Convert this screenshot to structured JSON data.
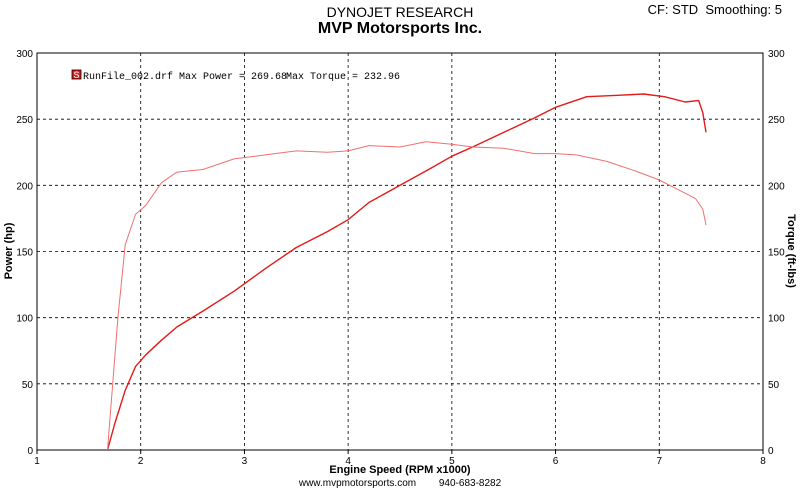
{
  "header": {
    "company": "DYNOJET RESEARCH",
    "shop": "MVP Motorsports Inc.",
    "cf": "CF: STD",
    "smoothing": "Smoothing: 5"
  },
  "footer": {
    "website": "www.mvpmotorsports.com",
    "phone": "940-683-8282"
  },
  "legend": {
    "badge": "S",
    "run_label": "RunFile_002.drf Max Power = 269.68",
    "torque_label": "Max Torque = 232.96"
  },
  "colors": {
    "power": "#e31a1a",
    "torque": "#f07070",
    "grid": "#000000",
    "plot_border": "#000000"
  },
  "chart_data": {
    "type": "line",
    "title": "MVP Motorsports Inc.",
    "xlabel": "Engine Speed (RPM x1000)",
    "ylabel": "Power (hp)",
    "y2label": "Torque (ft-lbs)",
    "xlim": [
      1,
      8
    ],
    "ylim": [
      0,
      300
    ],
    "y2lim": [
      0,
      300
    ],
    "grid": true,
    "legend_position": "top-left",
    "x_ticks": [
      "1",
      "2",
      "3",
      "4",
      "5",
      "6",
      "7",
      "8"
    ],
    "y_ticks": [
      "0",
      "50",
      "100",
      "150",
      "200",
      "250",
      "300"
    ],
    "y2_ticks": [
      "0",
      "50",
      "100",
      "150",
      "200",
      "250",
      "300"
    ],
    "series": [
      {
        "name": "Power",
        "axis": "left",
        "x": [
          1.68,
          1.75,
          1.85,
          1.95,
          2.05,
          2.2,
          2.35,
          2.6,
          2.9,
          3.2,
          3.5,
          3.8,
          4.0,
          4.2,
          4.5,
          4.8,
          5.0,
          5.2,
          5.5,
          5.8,
          6.0,
          6.3,
          6.6,
          6.85,
          7.05,
          7.25,
          7.38,
          7.42,
          7.45
        ],
        "values": [
          0,
          20,
          45,
          63,
          72,
          83,
          93,
          105,
          120,
          137,
          153,
          165,
          174,
          187,
          200,
          213,
          222,
          229,
          240,
          251,
          259,
          267,
          268,
          269,
          267,
          263,
          264,
          255,
          240
        ]
      },
      {
        "name": "Torque",
        "axis": "right",
        "x": [
          1.68,
          1.78,
          1.85,
          1.95,
          2.05,
          2.2,
          2.35,
          2.6,
          2.9,
          3.2,
          3.5,
          3.8,
          4.0,
          4.2,
          4.5,
          4.75,
          5.0,
          5.2,
          5.5,
          5.8,
          6.0,
          6.2,
          6.5,
          6.8,
          7.0,
          7.2,
          7.35,
          7.42,
          7.45
        ],
        "values": [
          0,
          100,
          155,
          178,
          185,
          202,
          210,
          212,
          220,
          223,
          226,
          225,
          226,
          230,
          229,
          233,
          231,
          229,
          228,
          224,
          224,
          223,
          218,
          210,
          204,
          196,
          190,
          182,
          170
        ]
      }
    ]
  }
}
